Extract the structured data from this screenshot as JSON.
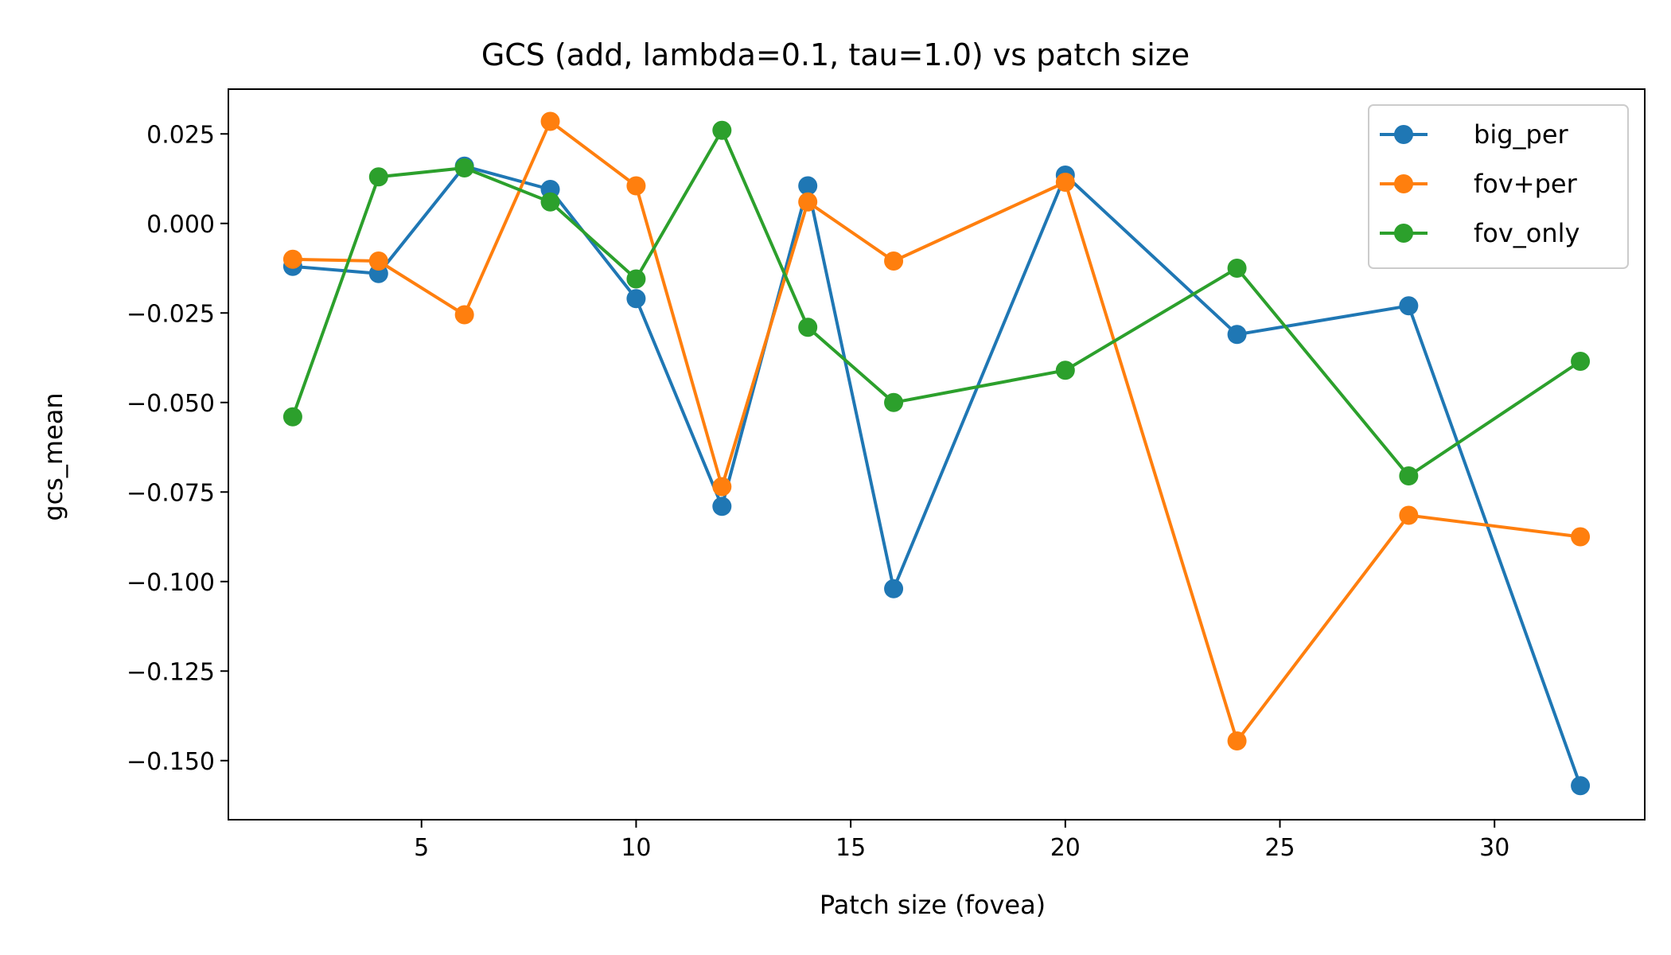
{
  "chart_data": {
    "type": "line",
    "title": "GCS (add, lambda=0.1, tau=1.0) vs patch size",
    "xlabel": "Patch size (fovea)",
    "ylabel": "gcs_mean",
    "xlim": [
      0.5,
      33.5
    ],
    "ylim": [
      -0.1665,
      0.0375
    ],
    "xticks": [
      5,
      10,
      15,
      20,
      25,
      30
    ],
    "yticks": [
      -0.15,
      -0.125,
      -0.1,
      -0.075,
      -0.05,
      -0.025,
      0.0,
      0.025
    ],
    "ytick_labels": [
      "−0.150",
      "−0.125",
      "−0.100",
      "−0.075",
      "−0.050",
      "−0.025",
      "0.000",
      "0.025"
    ],
    "grid": false,
    "legend_position": "top-right",
    "x": [
      2,
      4,
      6,
      8,
      10,
      12,
      14,
      16,
      20,
      24,
      28,
      32
    ],
    "series": [
      {
        "name": "big_per",
        "color": "#1f77b4",
        "values": [
          -0.012,
          -0.014,
          0.016,
          0.0095,
          -0.021,
          -0.079,
          0.0105,
          -0.102,
          0.0135,
          -0.031,
          -0.023,
          -0.157
        ]
      },
      {
        "name": "fov+per",
        "color": "#ff7f0e",
        "values": [
          -0.01,
          -0.0105,
          -0.0255,
          0.0285,
          0.0105,
          -0.0735,
          0.006,
          -0.0105,
          0.0115,
          -0.1445,
          -0.0815,
          -0.0875
        ]
      },
      {
        "name": "fov_only",
        "color": "#2ca02c",
        "values": [
          -0.054,
          0.013,
          0.0155,
          0.006,
          -0.0155,
          0.026,
          -0.029,
          -0.05,
          -0.041,
          -0.0125,
          -0.0705,
          -0.0385
        ]
      }
    ]
  }
}
